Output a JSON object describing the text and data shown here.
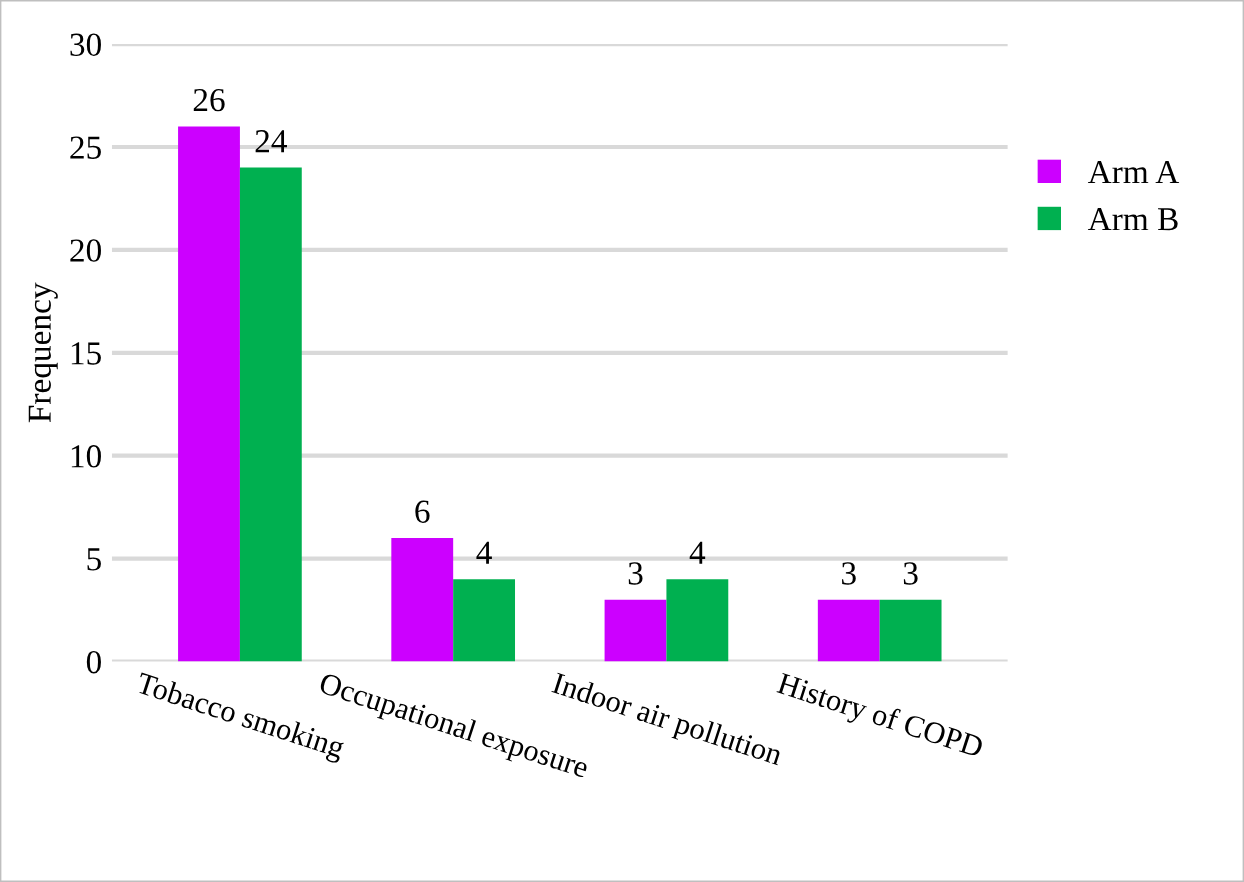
{
  "chart_data": {
    "type": "bar",
    "ylabel": "Frequency",
    "categories": [
      "Tobacco smoking",
      "Occupational exposure",
      "Indoor air pollution",
      "History of COPD"
    ],
    "series": [
      {
        "name": "Arm A",
        "color": "#cc00ff",
        "values": [
          26,
          6,
          3,
          3
        ]
      },
      {
        "name": "Arm B",
        "color": "#00b050",
        "values": [
          24,
          4,
          4,
          3
        ]
      }
    ],
    "ylim": [
      0,
      30
    ],
    "yticks": [
      0,
      5,
      10,
      15,
      20,
      25,
      30
    ],
    "grid": "y",
    "legend": "right",
    "data_labels": true
  }
}
